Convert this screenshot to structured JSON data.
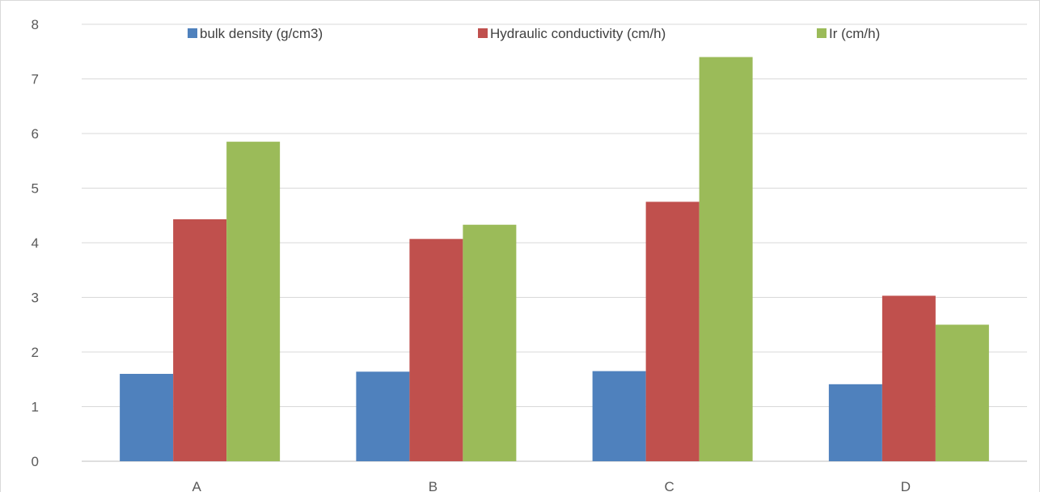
{
  "chart_data": {
    "type": "bar",
    "categories": [
      "A",
      "B",
      "C",
      "D"
    ],
    "series": [
      {
        "name": "bulk density (g/cm3)",
        "color": "#4f81bd",
        "values": [
          1.6,
          1.64,
          1.65,
          1.41
        ]
      },
      {
        "name": "Hydraulic conductivity (cm/h)",
        "color": "#c0504d",
        "values": [
          4.43,
          4.07,
          4.75,
          3.03
        ]
      },
      {
        "name": "Ir (cm/h)",
        "color": "#9bbb59",
        "values": [
          5.85,
          4.33,
          7.4,
          2.5
        ]
      }
    ],
    "ylim": [
      0,
      8
    ],
    "yticks": [
      "0",
      "1",
      "2",
      "3",
      "4",
      "5",
      "6",
      "7",
      "8"
    ],
    "grid": true,
    "legend_position": "top"
  }
}
